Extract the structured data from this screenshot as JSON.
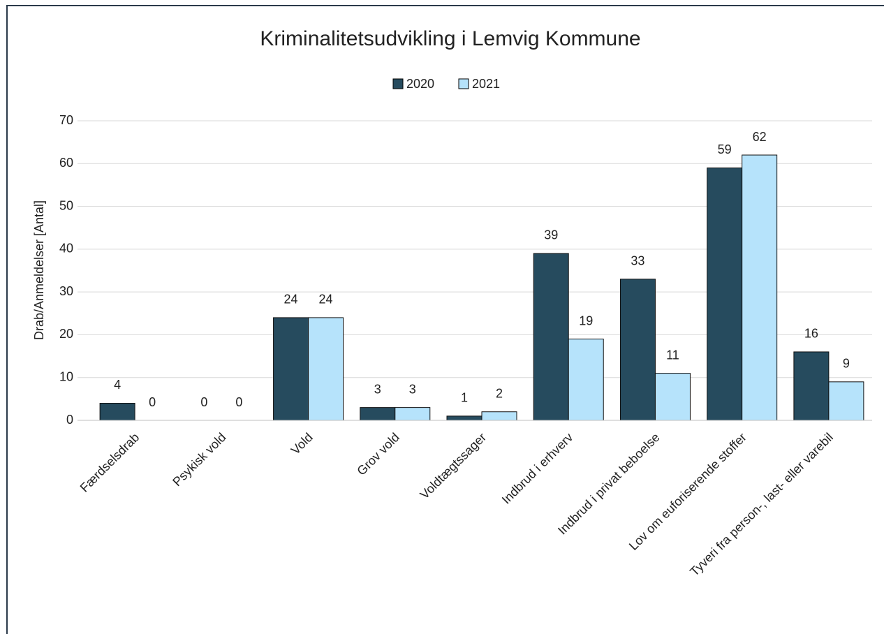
{
  "chart_data": {
    "type": "bar",
    "title": "Kriminalitetsudvikling i Lemvig Kommune",
    "y_label": "Drab/Anmeldelser [Antal]",
    "categories": [
      "Færdselsdrab",
      "Psykisk vold",
      "Vold",
      "Grov vold",
      "Voldtægtssager",
      "Indbrud i erhverv",
      "Indbrud i privat beboelse",
      "Lov om euforiserende stoffer",
      "Tyveri fra person-, last- eller varebil"
    ],
    "series": [
      {
        "name": "2020",
        "color": "#264b5e",
        "values": [
          4,
          0,
          24,
          3,
          1,
          39,
          33,
          59,
          16
        ]
      },
      {
        "name": "2021",
        "color": "#b6e3fb",
        "values": [
          0,
          0,
          24,
          3,
          2,
          19,
          11,
          62,
          9
        ]
      }
    ],
    "ylim": [
      0,
      70
    ],
    "yticks": [
      0,
      10,
      20,
      30,
      40,
      50,
      60,
      70
    ],
    "grid": true,
    "legend": "top"
  }
}
